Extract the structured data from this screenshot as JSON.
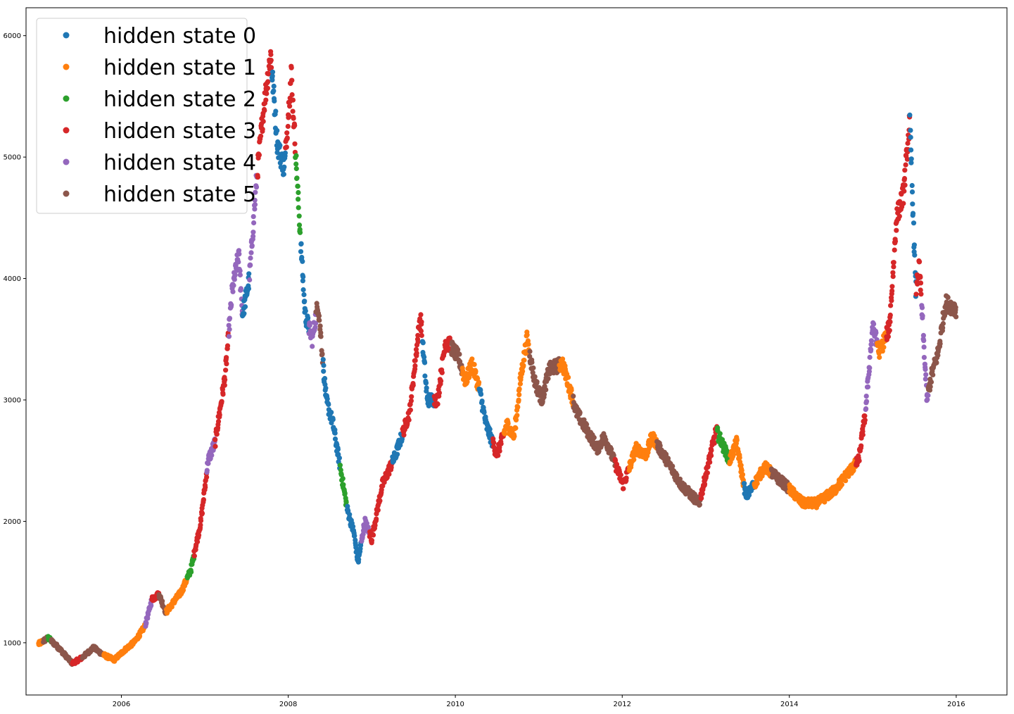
{
  "chart_data": {
    "type": "scatter",
    "title": "",
    "xlabel": "",
    "ylabel": "",
    "xlim": [
      "2004-11-10",
      "2016-08-10"
    ],
    "ylim": [
      570,
      6230
    ],
    "x_ticks": [
      "2006",
      "2008",
      "2010",
      "2012",
      "2014",
      "2016"
    ],
    "y_ticks": [
      1000,
      2000,
      3000,
      4000,
      5000,
      6000
    ],
    "grid": false,
    "legend_position": "upper-left",
    "series_names": [
      "hidden state 0",
      "hidden state 1",
      "hidden state 2",
      "hidden state 3",
      "hidden state 4",
      "hidden state 5"
    ],
    "colors": [
      "#1f77b4",
      "#ff7f0e",
      "#2ca02c",
      "#d62728",
      "#9467bd",
      "#8c564b"
    ],
    "price_path": [
      [
        "2005-01-04",
        990
      ],
      [
        "2005-02-15",
        1040
      ],
      [
        "2005-04-01",
        960
      ],
      [
        "2005-06-01",
        830
      ],
      [
        "2005-07-15",
        880
      ],
      [
        "2005-09-01",
        960
      ],
      [
        "2005-10-15",
        900
      ],
      [
        "2005-12-01",
        860
      ],
      [
        "2006-01-15",
        940
      ],
      [
        "2006-03-01",
        1010
      ],
      [
        "2006-04-15",
        1140
      ],
      [
        "2006-05-15",
        1360
      ],
      [
        "2006-06-15",
        1400
      ],
      [
        "2006-07-15",
        1250
      ],
      [
        "2006-08-15",
        1330
      ],
      [
        "2006-09-20",
        1420
      ],
      [
        "2006-11-01",
        1600
      ],
      [
        "2006-12-15",
        2000
      ],
      [
        "2007-01-15",
        2500
      ],
      [
        "2007-02-15",
        2650
      ],
      [
        "2007-03-31",
        3200
      ],
      [
        "2007-05-01",
        3900
      ],
      [
        "2007-05-29",
        4200
      ],
      [
        "2007-06-15",
        3700
      ],
      [
        "2007-07-15",
        4000
      ],
      [
        "2007-08-15",
        4800
      ],
      [
        "2007-09-15",
        5400
      ],
      [
        "2007-10-16",
        5850
      ],
      [
        "2007-11-15",
        5100
      ],
      [
        "2007-12-15",
        4900
      ],
      [
        "2008-01-14",
        5700
      ],
      [
        "2008-02-15",
        4600
      ],
      [
        "2008-03-15",
        3700
      ],
      [
        "2008-04-15",
        3500
      ],
      [
        "2008-05-10",
        3800
      ],
      [
        "2008-06-15",
        3000
      ],
      [
        "2008-07-15",
        2800
      ],
      [
        "2008-08-15",
        2450
      ],
      [
        "2008-09-15",
        2100
      ],
      [
        "2008-10-15",
        1900
      ],
      [
        "2008-11-01",
        1660
      ],
      [
        "2008-12-01",
        2000
      ],
      [
        "2008-12-31",
        1850
      ],
      [
        "2009-02-15",
        2300
      ],
      [
        "2009-04-15",
        2550
      ],
      [
        "2009-06-15",
        2900
      ],
      [
        "2009-08-01",
        3700
      ],
      [
        "2009-08-31",
        3000
      ],
      [
        "2009-10-15",
        3000
      ],
      [
        "2009-11-20",
        3500
      ],
      [
        "2010-01-15",
        3350
      ],
      [
        "2010-02-15",
        3150
      ],
      [
        "2010-03-15",
        3300
      ],
      [
        "2010-04-15",
        3100
      ],
      [
        "2010-05-15",
        2800
      ],
      [
        "2010-07-02",
        2550
      ],
      [
        "2010-08-15",
        2800
      ],
      [
        "2010-09-15",
        2700
      ],
      [
        "2010-10-15",
        3200
      ],
      [
        "2010-11-10",
        3500
      ],
      [
        "2010-12-15",
        3150
      ],
      [
        "2011-01-15",
        3000
      ],
      [
        "2011-02-15",
        3250
      ],
      [
        "2011-04-15",
        3300
      ],
      [
        "2011-06-15",
        2900
      ],
      [
        "2011-07-15",
        2800
      ],
      [
        "2011-09-15",
        2600
      ],
      [
        "2011-10-15",
        2700
      ],
      [
        "2012-01-06",
        2300
      ],
      [
        "2012-03-01",
        2600
      ],
      [
        "2012-04-15",
        2550
      ],
      [
        "2012-05-10",
        2700
      ],
      [
        "2012-07-15",
        2500
      ],
      [
        "2012-09-15",
        2300
      ],
      [
        "2012-12-03",
        2150
      ],
      [
        "2013-02-15",
        2750
      ],
      [
        "2013-04-15",
        2500
      ],
      [
        "2013-05-15",
        2650
      ],
      [
        "2013-06-25",
        2200
      ],
      [
        "2013-08-15",
        2350
      ],
      [
        "2013-09-15",
        2450
      ],
      [
        "2013-10-15",
        2400
      ],
      [
        "2013-12-15",
        2300
      ],
      [
        "2014-03-01",
        2150
      ],
      [
        "2014-05-01",
        2150
      ],
      [
        "2014-07-15",
        2250
      ],
      [
        "2014-09-15",
        2400
      ],
      [
        "2014-10-31",
        2500
      ],
      [
        "2014-11-30",
        2900
      ],
      [
        "2014-12-31",
        3600
      ],
      [
        "2015-01-31",
        3400
      ],
      [
        "2015-03-15",
        3600
      ],
      [
        "2015-04-15",
        4500
      ],
      [
        "2015-05-15",
        4700
      ],
      [
        "2015-06-12",
        5300
      ],
      [
        "2015-07-08",
        3900
      ],
      [
        "2015-07-24",
        4100
      ],
      [
        "2015-08-26",
        3000
      ],
      [
        "2015-09-15",
        3200
      ],
      [
        "2015-10-15",
        3400
      ],
      [
        "2015-11-15",
        3800
      ],
      [
        "2015-12-31",
        3750
      ]
    ],
    "state_segments": [
      [
        "2005-01-04",
        "2005-01-25",
        1
      ],
      [
        "2005-01-25",
        "2005-02-15",
        5
      ],
      [
        "2005-02-15",
        "2005-03-01",
        2
      ],
      [
        "2005-03-01",
        "2005-06-01",
        5
      ],
      [
        "2005-06-01",
        "2005-07-15",
        3
      ],
      [
        "2005-07-15",
        "2005-10-15",
        5
      ],
      [
        "2005-10-15",
        "2006-01-15",
        1
      ],
      [
        "2006-01-15",
        "2006-04-15",
        1
      ],
      [
        "2006-04-15",
        "2006-05-15",
        4
      ],
      [
        "2006-05-15",
        "2006-06-15",
        3
      ],
      [
        "2006-06-15",
        "2006-07-15",
        5
      ],
      [
        "2006-07-15",
        "2006-10-15",
        1
      ],
      [
        "2006-10-15",
        "2006-11-15",
        2
      ],
      [
        "2006-11-15",
        "2007-01-10",
        3
      ],
      [
        "2007-01-10",
        "2007-02-15",
        4
      ],
      [
        "2007-02-15",
        "2007-04-15",
        3
      ],
      [
        "2007-04-15",
        "2007-06-15",
        4
      ],
      [
        "2007-06-15",
        "2007-07-15",
        0
      ],
      [
        "2007-07-15",
        "2007-08-20",
        4
      ],
      [
        "2007-08-20",
        "2007-10-20",
        3
      ],
      [
        "2007-10-20",
        "2007-12-20",
        0
      ],
      [
        "2007-12-20",
        "2008-02-01",
        3
      ],
      [
        "2008-02-01",
        "2008-02-25",
        2
      ],
      [
        "2008-02-25",
        "2008-04-01",
        0
      ],
      [
        "2008-04-01",
        "2008-05-01",
        4
      ],
      [
        "2008-05-01",
        "2008-06-01",
        5
      ],
      [
        "2008-06-01",
        "2008-08-15",
        0
      ],
      [
        "2008-08-15",
        "2008-09-15",
        2
      ],
      [
        "2008-09-15",
        "2008-11-15",
        0
      ],
      [
        "2008-11-15",
        "2008-12-20",
        4
      ],
      [
        "2008-12-20",
        "2009-04-01",
        3
      ],
      [
        "2009-04-01",
        "2009-05-15",
        0
      ],
      [
        "2009-05-15",
        "2009-08-10",
        3
      ],
      [
        "2009-08-10",
        "2009-10-01",
        0
      ],
      [
        "2009-10-01",
        "2009-12-15",
        3
      ],
      [
        "2009-12-15",
        "2010-02-01",
        5
      ],
      [
        "2010-02-01",
        "2010-04-15",
        1
      ],
      [
        "2010-04-15",
        "2010-06-15",
        0
      ],
      [
        "2010-06-15",
        "2010-08-01",
        3
      ],
      [
        "2010-08-01",
        "2010-10-01",
        1
      ],
      [
        "2010-10-01",
        "2010-11-20",
        1
      ],
      [
        "2010-11-20",
        "2011-04-01",
        5
      ],
      [
        "2011-04-01",
        "2011-06-01",
        1
      ],
      [
        "2011-06-01",
        "2011-12-01",
        5
      ],
      [
        "2011-12-01",
        "2012-02-01",
        3
      ],
      [
        "2012-02-01",
        "2012-06-01",
        1
      ],
      [
        "2012-06-01",
        "2012-12-10",
        5
      ],
      [
        "2012-12-10",
        "2013-02-20",
        3
      ],
      [
        "2013-02-20",
        "2013-04-15",
        2
      ],
      [
        "2013-04-15",
        "2013-06-15",
        1
      ],
      [
        "2013-06-15",
        "2013-08-01",
        0
      ],
      [
        "2013-08-01",
        "2013-10-15",
        1
      ],
      [
        "2013-10-15",
        "2014-01-01",
        5
      ],
      [
        "2014-01-01",
        "2014-07-01",
        1
      ],
      [
        "2014-07-01",
        "2014-10-20",
        1
      ],
      [
        "2014-10-20",
        "2014-12-01",
        3
      ],
      [
        "2014-12-01",
        "2015-01-20",
        4
      ],
      [
        "2015-01-20",
        "2015-03-01",
        1
      ],
      [
        "2015-03-01",
        "2015-06-12",
        3
      ],
      [
        "2015-06-12",
        "2015-07-10",
        0
      ],
      [
        "2015-07-10",
        "2015-08-01",
        3
      ],
      [
        "2015-08-01",
        "2015-09-01",
        4
      ],
      [
        "2015-09-01",
        "2015-10-15",
        5
      ],
      [
        "2015-10-15",
        "2015-12-31",
        5
      ]
    ]
  }
}
